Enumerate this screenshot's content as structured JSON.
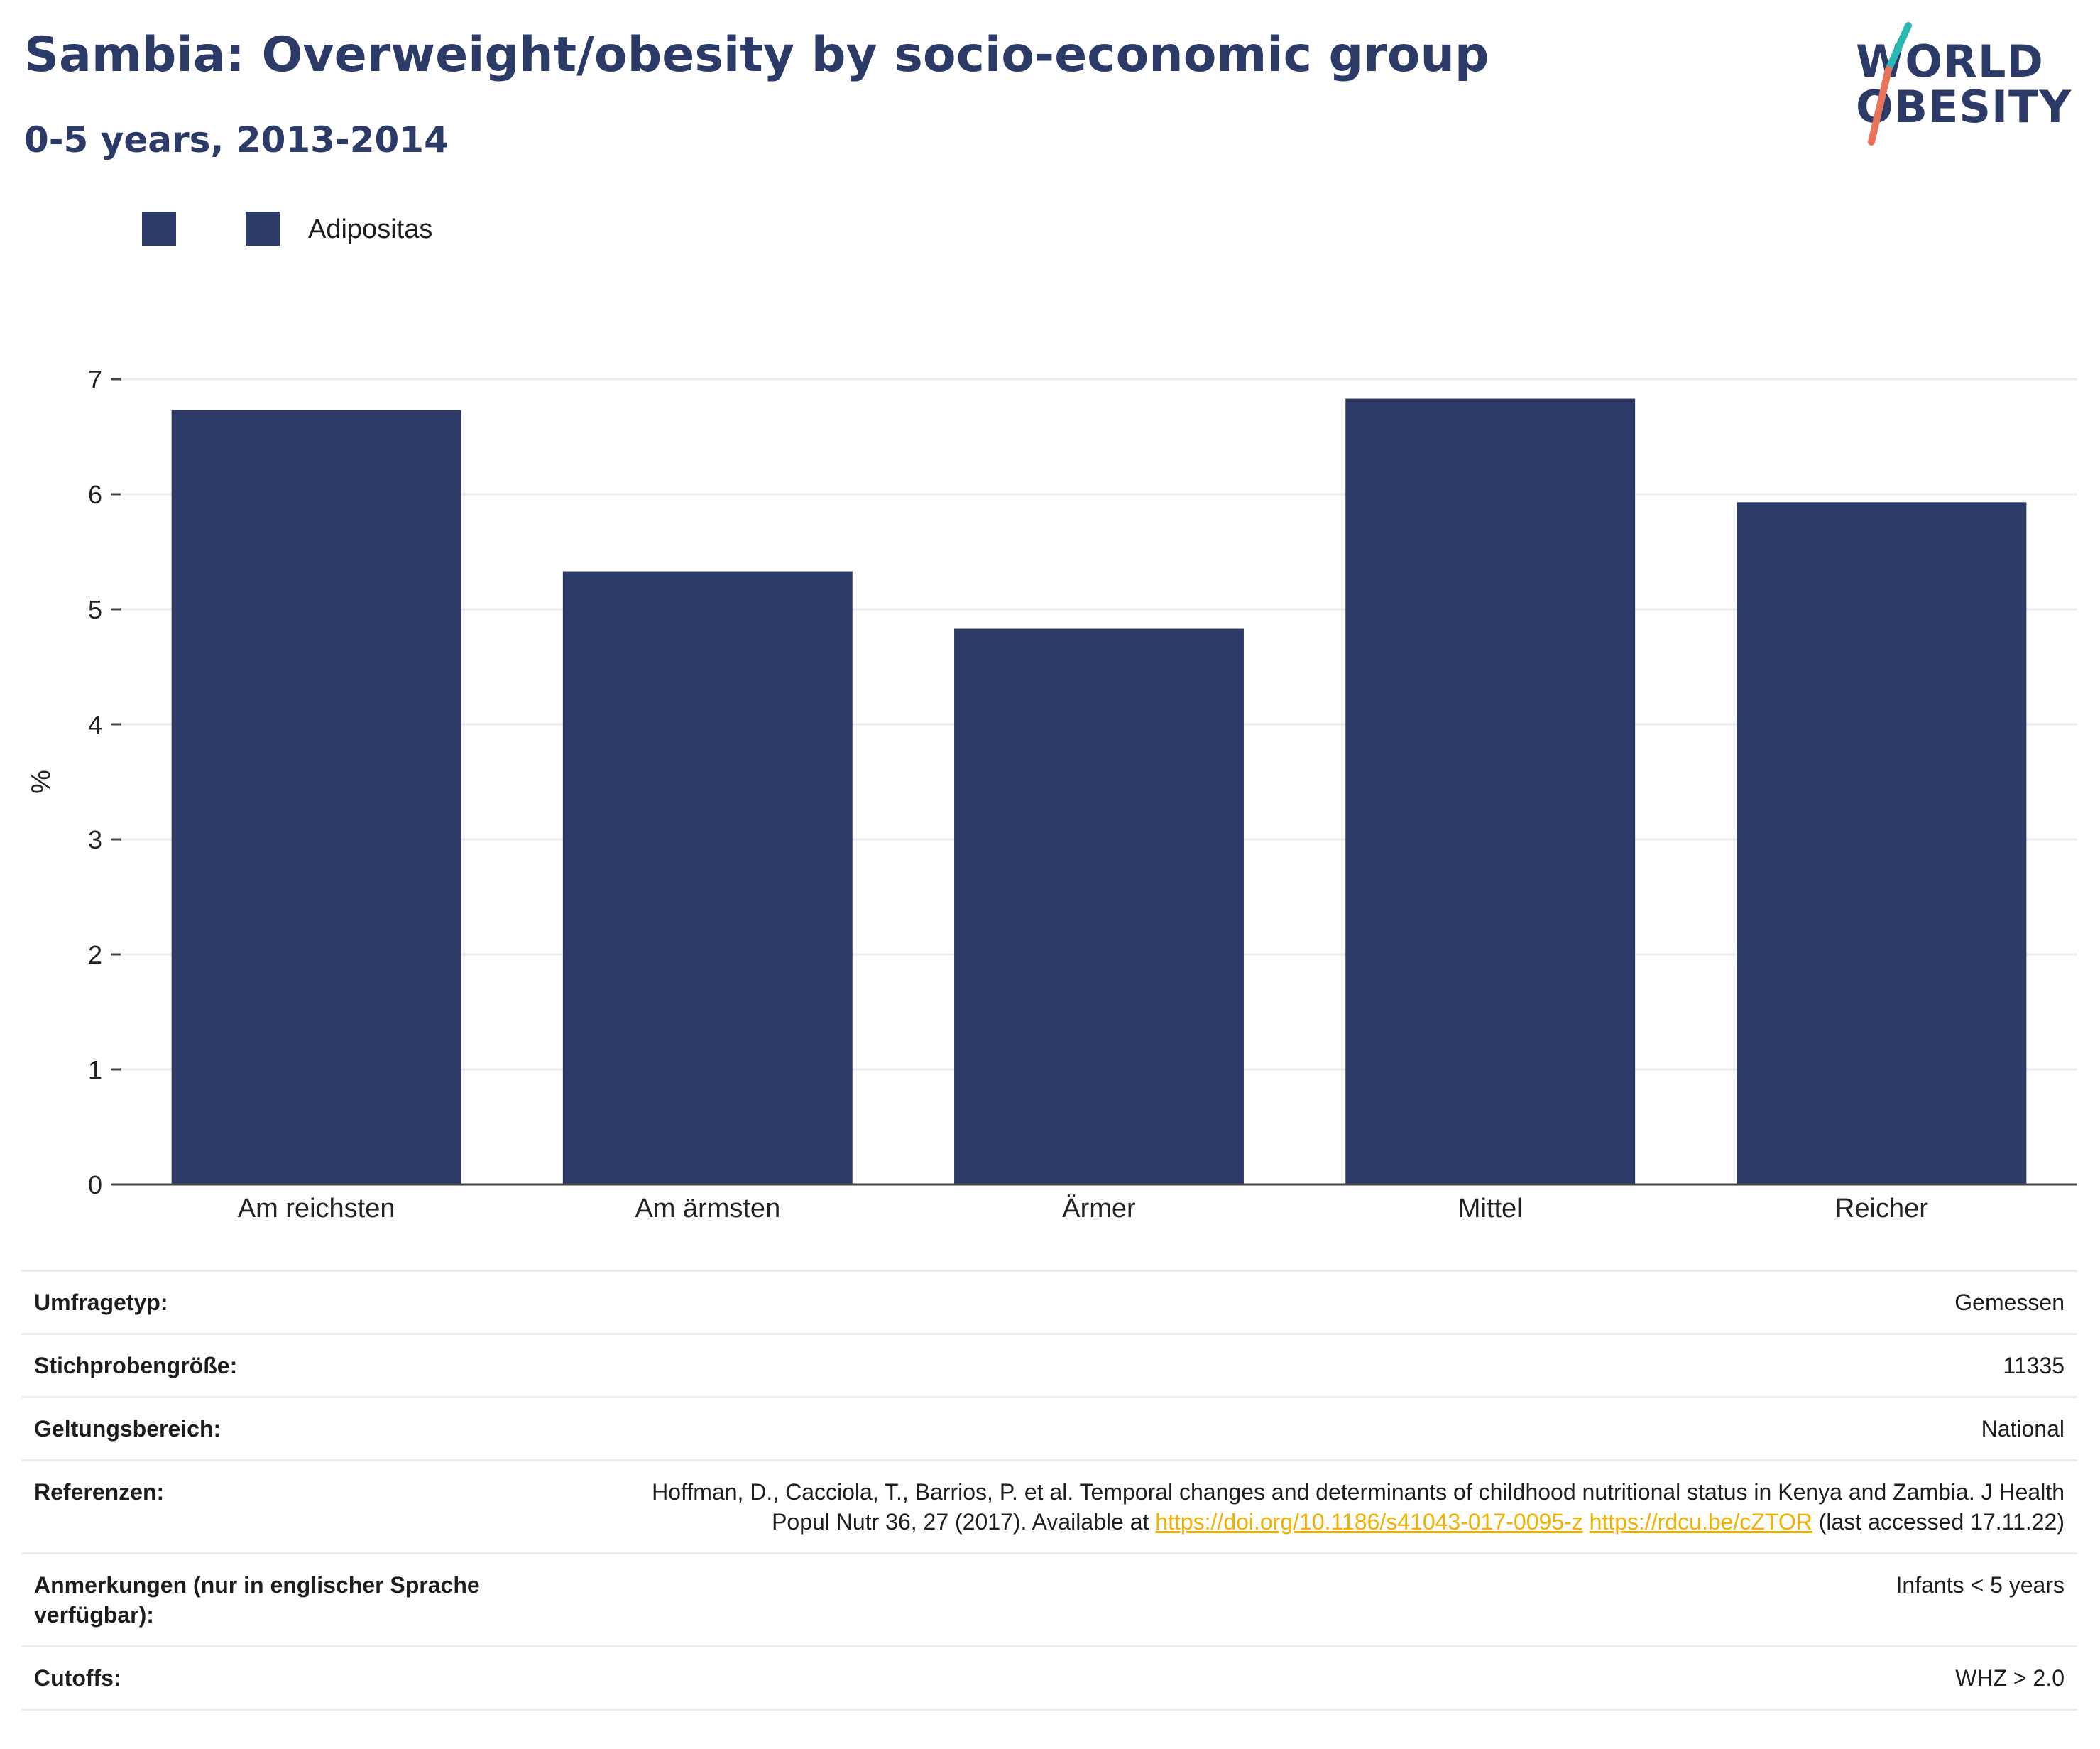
{
  "header": {
    "title": "Sambia: Overweight/obesity by socio-economic group",
    "subtitle": "0-5 years, 2013-2014"
  },
  "logo": {
    "line1": "WORLD",
    "line2": "OBESITY",
    "colors": {
      "text": "#2b3a67",
      "teal": "#2bb7b3",
      "coral": "#e8735a"
    }
  },
  "legend": {
    "items": [
      {
        "label": "",
        "color": "#2b3a67"
      },
      {
        "label": "Adipositas",
        "color": "#2b3a67"
      }
    ]
  },
  "chart_data": {
    "type": "bar",
    "categories": [
      "Am reichsten",
      "Am ärmsten",
      "Ärmer",
      "Mittel",
      "Reicher"
    ],
    "series": [
      {
        "name": "Adipositas",
        "values": [
          6.73,
          5.33,
          4.83,
          6.83,
          5.93
        ],
        "color": "#2b3a67"
      }
    ],
    "title": "Sambia: Overweight/obesity by socio-economic group",
    "subtitle": "0-5 years, 2013-2014",
    "xlabel": "",
    "ylabel": "%",
    "ylim": [
      0,
      7
    ],
    "yticks": [
      0,
      1,
      2,
      3,
      4,
      5,
      6,
      7
    ],
    "grid": true,
    "legend_position": "top-left"
  },
  "info": {
    "rows": [
      {
        "label": "Umfragetyp:",
        "value": "Gemessen"
      },
      {
        "label": "Stichprobengröße:",
        "value": "11335"
      },
      {
        "label": "Geltungsbereich:",
        "value": "National"
      },
      {
        "label": "Referenzen:",
        "value_text": "Hoffman, D., Cacciola, T., Barrios, P. et al. Temporal changes and determinants of childhood nutritional status in Kenya and Zambia. J Health Popul Nutr 36, 27 (2017). Available at",
        "link1": "https://doi.org/10.1186/s41043-017-0095-z",
        "link2": "https://rdcu.be/cZTOR",
        "value_suffix": "(last accessed 17.11.22)"
      },
      {
        "label": "Anmerkungen (nur in englischer Sprache verfügbar):",
        "value": "Infants < 5 years"
      },
      {
        "label": "Cutoffs:",
        "value": "WHZ > 2.0"
      }
    ],
    "link_color": "#f2b000"
  }
}
